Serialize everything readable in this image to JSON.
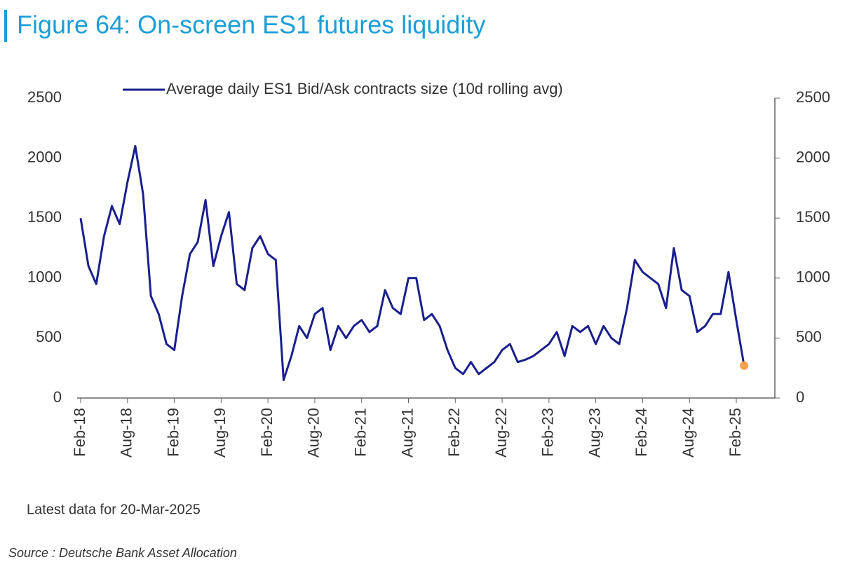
{
  "chart_data": {
    "type": "line",
    "title": "Figure 64: On-screen ES1 futures liquidity",
    "note": "Latest data for 20-Mar-2025",
    "source": "Source : Deutsche Bank Asset Allocation",
    "categories": [
      "Feb-18",
      null,
      null,
      null,
      null,
      null,
      "Aug-18",
      null,
      null,
      null,
      null,
      null,
      "Feb-19",
      null,
      null,
      null,
      null,
      null,
      "Aug-19",
      null,
      null,
      null,
      null,
      null,
      "Feb-20",
      null,
      null,
      null,
      null,
      null,
      "Aug-20",
      null,
      null,
      null,
      null,
      null,
      "Feb-21",
      null,
      null,
      null,
      null,
      null,
      "Aug-21",
      null,
      null,
      null,
      null,
      null,
      "Feb-22",
      null,
      null,
      null,
      null,
      null,
      "Aug-22",
      null,
      null,
      null,
      null,
      null,
      "Feb-23",
      null,
      null,
      null,
      null,
      null,
      "Aug-23",
      null,
      null,
      null,
      null,
      null,
      "Feb-24",
      null,
      null,
      null,
      null,
      null,
      "Aug-24",
      null,
      null,
      null,
      null,
      null,
      "Feb-25",
      null
    ],
    "series": [
      {
        "name": "Average daily ES1 Bid/Ask contracts size (10d rolling avg)",
        "color": "#1a1f8c",
        "values": [
          1500,
          1100,
          950,
          1350,
          1600,
          1450,
          1800,
          2100,
          1700,
          850,
          700,
          450,
          400,
          850,
          1200,
          1300,
          1650,
          1100,
          1350,
          1550,
          950,
          900,
          1250,
          1350,
          1200,
          1150,
          150,
          350,
          600,
          500,
          700,
          750,
          400,
          600,
          500,
          600,
          650,
          550,
          600,
          900,
          750,
          700,
          1000,
          1000,
          650,
          700,
          600,
          400,
          250,
          200,
          300,
          200,
          250,
          300,
          400,
          450,
          300,
          320,
          350,
          400,
          450,
          550,
          350,
          600,
          550,
          600,
          450,
          600,
          500,
          450,
          750,
          1150,
          1050,
          1000,
          950,
          750,
          1250,
          900,
          850,
          550,
          600,
          700,
          700,
          1050,
          650,
          270
        ]
      }
    ],
    "latest_marker_color": "#f5a04a",
    "ylim": [
      0,
      2500
    ],
    "yticks": [
      0,
      500,
      1000,
      1500,
      2000,
      2500
    ]
  }
}
